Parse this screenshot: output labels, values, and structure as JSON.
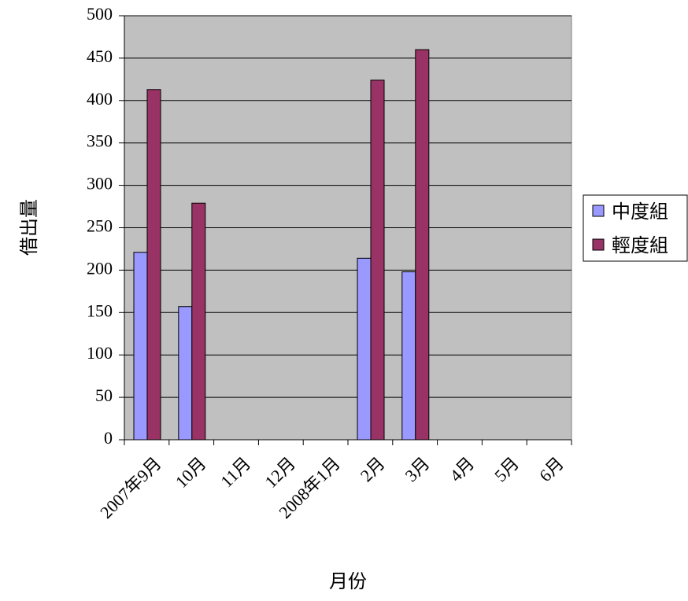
{
  "chart_data": {
    "type": "bar",
    "title": "",
    "xlabel": "月份",
    "ylabel": "借出量",
    "ylim": [
      0,
      500
    ],
    "yticks": [
      0,
      50,
      100,
      150,
      200,
      250,
      300,
      350,
      400,
      450,
      500
    ],
    "grid": true,
    "legend_position": "right",
    "categories": [
      "2007年9月",
      "10月",
      "11月",
      "12月",
      "2008年1月",
      "2月",
      "3月",
      "4月",
      "5月",
      "6月"
    ],
    "series": [
      {
        "name": "中度組",
        "color": "#9999ff",
        "values": [
          221,
          157,
          null,
          null,
          null,
          214,
          198,
          null,
          null,
          null
        ]
      },
      {
        "name": "輕度組",
        "color": "#993366",
        "values": [
          413,
          279,
          null,
          null,
          null,
          424,
          460,
          null,
          null,
          null
        ]
      }
    ],
    "plot_background": "#c0c0c0"
  }
}
